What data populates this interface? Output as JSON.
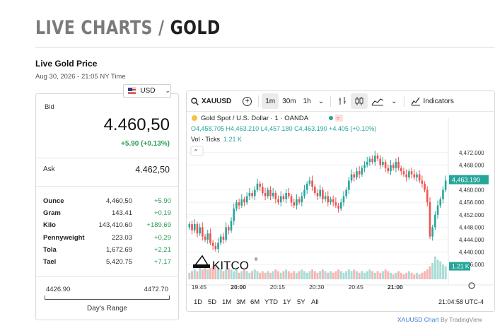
{
  "page": {
    "title_prefix": "LIVE CHARTS / ",
    "title_main": "GOLD"
  },
  "price": {
    "heading": "Live Gold Price",
    "timestamp": "Aug 30, 2026 - 21:05 NY Time"
  },
  "currency": {
    "selected": "USD",
    "flag_icon": "us-flag-icon"
  },
  "bid": {
    "label": "Bid",
    "value": "4.460,50",
    "change": "+5.90 (+0.13%)"
  },
  "ask": {
    "label": "Ask",
    "value": "4.462,50"
  },
  "units": [
    {
      "unit": "Ounce",
      "price": "4,460,50",
      "change": "+5.90"
    },
    {
      "unit": "Gram",
      "price": "143.41",
      "change": "+0,19"
    },
    {
      "unit": "Kilo",
      "price": "143,410.60",
      "change": "+189,69"
    },
    {
      "unit": "Pennyweight",
      "price": "223.03",
      "change": "+0,29"
    },
    {
      "unit": "Tola",
      "price": "1,672.69",
      "change": "+2,21"
    },
    {
      "unit": "Tael",
      "price": "5,420.75",
      "change": "+7,17"
    }
  ],
  "day_range": {
    "low": "4426.90",
    "high": "4472.70",
    "label": "Day's Range"
  },
  "toolbar": {
    "symbol": "XAUUSD",
    "intervals": [
      "1m",
      "30m",
      "1h"
    ],
    "active_interval": "1m",
    "indicators": "Indicators"
  },
  "chart_data": {
    "type": "candlestick",
    "legend_title": "Gold Spot / U.S. Dollar · 1 · OANDA",
    "ohlc_line": "O4,458.705 H4,463.210 L4,457.180 C4,463.190 +4.405 (+0.10%)",
    "volume_label": "Vol · Ticks",
    "volume_value": "1.21 K",
    "y_ticks": [
      "4,472.000",
      "4,468.000",
      "4,460.000",
      "4,456.000",
      "4,452.000",
      "4,448.000",
      "4,444.000",
      "4,440.000",
      "4,436.000"
    ],
    "y_tick_values": [
      4472,
      4468,
      4460,
      4456,
      4452,
      4448,
      4444,
      4440,
      4436
    ],
    "ylim": [
      4434,
      4474
    ],
    "x_ticks": [
      "19:45",
      "20:00",
      "20:15",
      "20:30",
      "20:45",
      "21:00"
    ],
    "last_price_label": "4,463.190",
    "last_price": 4463.19,
    "last_volume_label": "1.21 K",
    "time_label": "21:04:58 UTC-4",
    "ranges": [
      "1D",
      "5D",
      "1M",
      "3M",
      "6M",
      "YTD",
      "1Y",
      "5Y",
      "All"
    ],
    "watermark": "KITCO",
    "up_color": "#26a69a",
    "down_color": "#ef5350",
    "closes": [
      4449,
      4447,
      4449,
      4446,
      4448,
      4445,
      4444,
      4446,
      4443,
      4442,
      4441,
      4443,
      4445,
      4444,
      4448,
      4447,
      4450,
      4454,
      4456,
      4455,
      4457,
      4456,
      4458,
      4459,
      4458,
      4460,
      4462,
      4461,
      4459,
      4458,
      4460,
      4458,
      4459,
      4457,
      4456,
      4458,
      4457,
      4459,
      4458,
      4456,
      4455,
      4457,
      4456,
      4458,
      4460,
      4462,
      4463,
      4461,
      4459,
      4458,
      4460,
      4457,
      4458,
      4456,
      4457,
      4456,
      4455,
      4454,
      4456,
      4458,
      4460,
      4463,
      4465,
      4464,
      4466,
      4465,
      4467,
      4468,
      4469,
      4470,
      4469,
      4471,
      4470,
      4468,
      4469,
      4467,
      4466,
      4468,
      4467,
      4469,
      4467,
      4466,
      4465,
      4464,
      4466,
      4465,
      4464,
      4465,
      4463,
      4462,
      4460,
      4456,
      4445,
      4448,
      4452,
      4455,
      4457,
      4460,
      4463
    ],
    "volumes": [
      4,
      5,
      6,
      5,
      7,
      6,
      8,
      6,
      7,
      8,
      9,
      7,
      6,
      5,
      6,
      7,
      6,
      5,
      6,
      4,
      5,
      6,
      5,
      4,
      5,
      6,
      5,
      4,
      5,
      4,
      5,
      4,
      5,
      6,
      5,
      4,
      5,
      6,
      5,
      4,
      5,
      4,
      5,
      6,
      5,
      4,
      5,
      6,
      5,
      4,
      5,
      6,
      5,
      4,
      5,
      4,
      5,
      6,
      5,
      4,
      5,
      6,
      5,
      6,
      5,
      4,
      5,
      4,
      5,
      6,
      5,
      4,
      5,
      4,
      5,
      6,
      5,
      4,
      3,
      4,
      5,
      4,
      3,
      4,
      5,
      4,
      3,
      4,
      3,
      4,
      5,
      6,
      8,
      10,
      14,
      12,
      11,
      9,
      8
    ]
  }
}
